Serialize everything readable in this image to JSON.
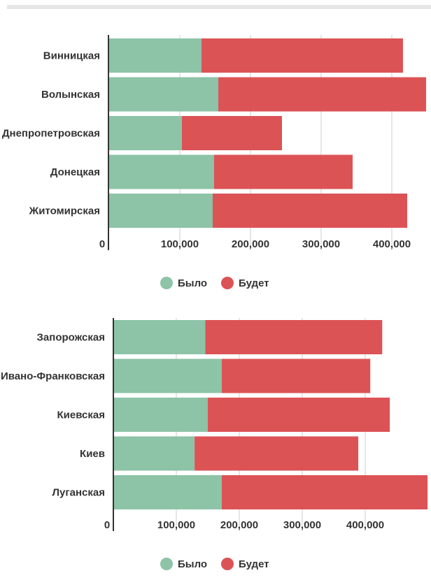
{
  "chart_data": [
    {
      "type": "bar",
      "orientation": "horizontal",
      "stacked": true,
      "categories": [
        "Винницкая",
        "Волынская",
        "Днепропетровская",
        "Донецкая",
        "Житомирская"
      ],
      "series": [
        {
          "name": "Было",
          "color": "#8dc3a7",
          "values": [
            133000,
            157000,
            105000,
            151000,
            149000
          ]
        },
        {
          "name": "Будет",
          "color": "#dc5356",
          "values": [
            288000,
            297000,
            143000,
            198000,
            278000
          ]
        }
      ],
      "xticks": [
        "0",
        "100,000",
        "200,000",
        "300,000",
        "400,000"
      ],
      "xlim": [
        0,
        450000
      ],
      "grid": true,
      "legend": "bottom"
    },
    {
      "type": "bar",
      "orientation": "horizontal",
      "stacked": true,
      "categories": [
        "Запорожская",
        "Ивано-Франковская",
        "Киевская",
        "Киев",
        "Луганская"
      ],
      "series": [
        {
          "name": "Было",
          "color": "#8dc3a7",
          "values": [
            146000,
            172000,
            150000,
            129000,
            172000
          ]
        },
        {
          "name": "Будет",
          "color": "#dc5356",
          "values": [
            281000,
            236000,
            289000,
            260000,
            327000
          ]
        }
      ],
      "xticks": [
        "0",
        "100,000",
        "200,000",
        "300,000",
        "400,000"
      ],
      "xlim": [
        0,
        500000
      ],
      "grid": true,
      "legend": "bottom"
    }
  ]
}
